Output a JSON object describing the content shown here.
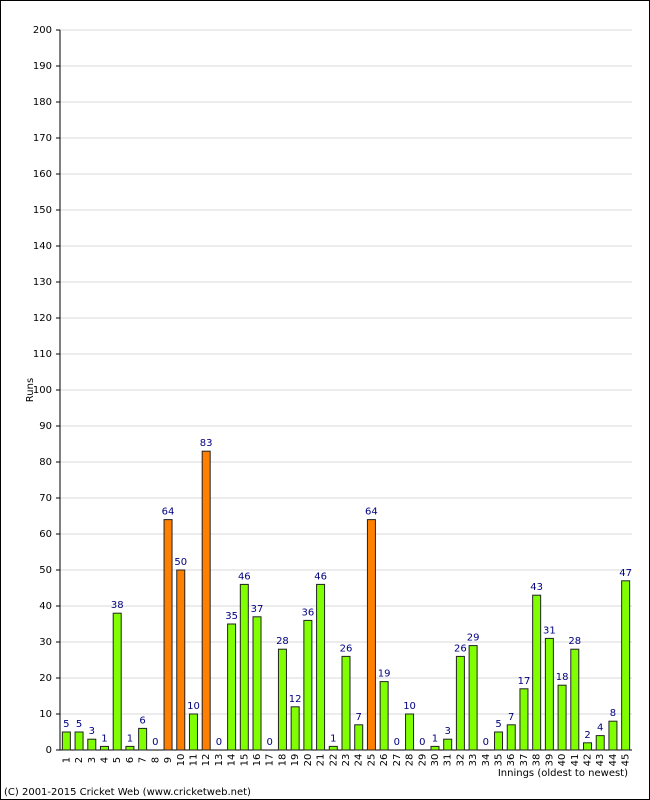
{
  "chart_data": {
    "type": "bar",
    "y_label": "Runs",
    "x_label": "Innings (oldest to newest)",
    "footer": "(C) 2001-2015 Cricket Web (www.cricketweb.net)",
    "categories": [
      "1",
      "2",
      "3",
      "4",
      "5",
      "6",
      "7",
      "8",
      "9",
      "10",
      "11",
      "12",
      "13",
      "14",
      "15",
      "16",
      "17",
      "18",
      "19",
      "20",
      "21",
      "22",
      "23",
      "24",
      "25",
      "26",
      "27",
      "28",
      "29",
      "30",
      "31",
      "32",
      "33",
      "34",
      "35",
      "36",
      "37",
      "38",
      "39",
      "40",
      "41",
      "42",
      "43",
      "44",
      "45"
    ],
    "values": [
      5,
      5,
      3,
      1,
      38,
      1,
      6,
      0,
      64,
      50,
      10,
      83,
      0,
      35,
      46,
      37,
      0,
      28,
      12,
      36,
      46,
      1,
      26,
      7,
      64,
      19,
      0,
      10,
      0,
      1,
      3,
      26,
      29,
      0,
      5,
      7,
      17,
      43,
      31,
      18,
      28,
      2,
      4,
      8,
      47
    ],
    "bar_colors": [
      "#80ff00",
      "#80ff00",
      "#80ff00",
      "#80ff00",
      "#80ff00",
      "#80ff00",
      "#80ff00",
      "#80ff00",
      "#ff8000",
      "#ff8000",
      "#80ff00",
      "#ff8000",
      "#80ff00",
      "#80ff00",
      "#80ff00",
      "#80ff00",
      "#80ff00",
      "#80ff00",
      "#80ff00",
      "#80ff00",
      "#80ff00",
      "#80ff00",
      "#80ff00",
      "#80ff00",
      "#ff8000",
      "#80ff00",
      "#80ff00",
      "#80ff00",
      "#80ff00",
      "#80ff00",
      "#80ff00",
      "#80ff00",
      "#80ff00",
      "#80ff00",
      "#80ff00",
      "#80ff00",
      "#80ff00",
      "#80ff00",
      "#80ff00",
      "#80ff00",
      "#80ff00",
      "#80ff00",
      "#80ff00",
      "#80ff00",
      "#80ff00"
    ],
    "ylim": [
      0,
      200
    ],
    "yticks": [
      0,
      10,
      20,
      30,
      40,
      50,
      60,
      70,
      80,
      90,
      100,
      110,
      120,
      130,
      140,
      150,
      160,
      170,
      180,
      190,
      200
    ],
    "grid": true
  }
}
